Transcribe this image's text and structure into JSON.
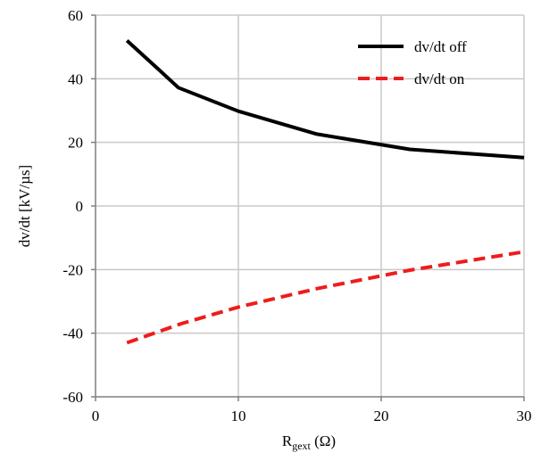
{
  "chart_data": {
    "type": "line",
    "xlabel": {
      "main": "R",
      "sub": "gext",
      "unit": " (Ω)"
    },
    "ylabel": "dv/dt [kV/µs]",
    "xlim": [
      0,
      30
    ],
    "ylim": [
      -60,
      60
    ],
    "xticks": [
      0,
      10,
      20,
      30
    ],
    "yticks": [
      -60,
      -40,
      -20,
      0,
      20,
      40,
      60
    ],
    "grid": true,
    "legend_position": "top-right",
    "series": [
      {
        "name": "dv/dt off",
        "color": "#000000",
        "style": "solid",
        "points": [
          [
            2.2,
            52
          ],
          [
            4.4,
            43
          ],
          [
            5.8,
            37.2
          ],
          [
            10,
            29.8
          ],
          [
            15.5,
            22.6
          ],
          [
            22,
            17.8
          ],
          [
            30,
            15.2
          ]
        ]
      },
      {
        "name": "dv/dt on",
        "color": "#ee1c1c",
        "style": "dashed",
        "points": [
          [
            2.2,
            -43
          ],
          [
            6,
            -37
          ],
          [
            10,
            -31.8
          ],
          [
            15.5,
            -26
          ],
          [
            22,
            -20.2
          ],
          [
            30,
            -14.4
          ]
        ]
      }
    ]
  }
}
